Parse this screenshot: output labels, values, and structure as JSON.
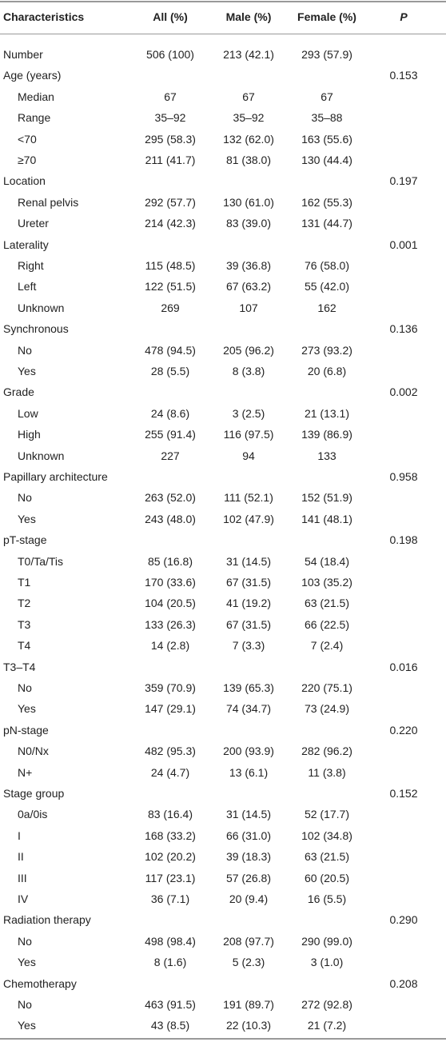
{
  "table": {
    "header": [
      "Characteristics",
      "All (%)",
      "Male (%)",
      "Female (%)",
      "P"
    ],
    "number_row": [
      "Number",
      "506 (100)",
      "213 (42.1)",
      "293 (57.9)"
    ],
    "groups": [
      {
        "label": "Age (years)",
        "p": "0.153",
        "rows": [
          [
            "Median",
            "67",
            "67",
            "67"
          ],
          [
            "Range",
            "35–92",
            "35–92",
            "35–88"
          ],
          [
            "<70",
            "295 (58.3)",
            "132 (62.0)",
            "163 (55.6)"
          ],
          [
            "≥70",
            "211 (41.7)",
            "81 (38.0)",
            "130 (44.4)"
          ]
        ]
      },
      {
        "label": "Location",
        "p": "0.197",
        "rows": [
          [
            "Renal pelvis",
            "292 (57.7)",
            "130 (61.0)",
            "162 (55.3)"
          ],
          [
            "Ureter",
            "214 (42.3)",
            "83 (39.0)",
            "131 (44.7)"
          ]
        ]
      },
      {
        "label": "Laterality",
        "p": "0.001",
        "rows": [
          [
            "Right",
            "115 (48.5)",
            "39 (36.8)",
            "76 (58.0)"
          ],
          [
            "Left",
            "122 (51.5)",
            "67 (63.2)",
            "55 (42.0)"
          ],
          [
            "Unknown",
            "269",
            "107",
            "162"
          ]
        ]
      },
      {
        "label": "Synchronous",
        "p": "0.136",
        "rows": [
          [
            "No",
            "478 (94.5)",
            "205 (96.2)",
            "273 (93.2)"
          ],
          [
            "Yes",
            "28 (5.5)",
            "8 (3.8)",
            "20 (6.8)"
          ]
        ]
      },
      {
        "label": "Grade",
        "p": "0.002",
        "rows": [
          [
            "Low",
            "24 (8.6)",
            "3 (2.5)",
            "21 (13.1)"
          ],
          [
            "High",
            "255 (91.4)",
            "116 (97.5)",
            "139 (86.9)"
          ],
          [
            "Unknown",
            "227",
            "94",
            "133"
          ]
        ]
      },
      {
        "label": "Papillary architecture",
        "p": "0.958",
        "rows": [
          [
            "No",
            "263 (52.0)",
            "111 (52.1)",
            "152 (51.9)"
          ],
          [
            "Yes",
            "243 (48.0)",
            "102 (47.9)",
            "141 (48.1)"
          ]
        ]
      },
      {
        "label": "pT-stage",
        "p": "0.198",
        "rows": [
          [
            "T0/Ta/Tis",
            "85 (16.8)",
            "31 (14.5)",
            "54 (18.4)"
          ],
          [
            "T1",
            "170 (33.6)",
            "67 (31.5)",
            "103 (35.2)"
          ],
          [
            "T2",
            "104 (20.5)",
            "41 (19.2)",
            "63 (21.5)"
          ],
          [
            "T3",
            "133 (26.3)",
            "67 (31.5)",
            "66 (22.5)"
          ],
          [
            "T4",
            "14 (2.8)",
            "7 (3.3)",
            "7 (2.4)"
          ]
        ]
      },
      {
        "label": "T3–T4",
        "p": "0.016",
        "rows": [
          [
            "No",
            "359 (70.9)",
            "139 (65.3)",
            "220 (75.1)"
          ],
          [
            "Yes",
            "147 (29.1)",
            "74 (34.7)",
            "73 (24.9)"
          ]
        ]
      },
      {
        "label": "pN-stage",
        "p": "0.220",
        "rows": [
          [
            "N0/Nx",
            "482 (95.3)",
            "200 (93.9)",
            "282 (96.2)"
          ],
          [
            "N+",
            "24 (4.7)",
            "13 (6.1)",
            "11 (3.8)"
          ]
        ]
      },
      {
        "label": "Stage group",
        "p": "0.152",
        "rows": [
          [
            "0a/0is",
            "83 (16.4)",
            "31 (14.5)",
            "52 (17.7)"
          ],
          [
            "I",
            "168 (33.2)",
            "66 (31.0)",
            "102 (34.8)"
          ],
          [
            "II",
            "102 (20.2)",
            "39 (18.3)",
            "63 (21.5)"
          ],
          [
            "III",
            "117 (23.1)",
            "57 (26.8)",
            "60 (20.5)"
          ],
          [
            "IV",
            "36 (7.1)",
            "20 (9.4)",
            "16 (5.5)"
          ]
        ]
      },
      {
        "label": "Radiation therapy",
        "p": "0.290",
        "rows": [
          [
            "No",
            "498 (98.4)",
            "208 (97.7)",
            "290 (99.0)"
          ],
          [
            "Yes",
            "8 (1.6)",
            "5 (2.3)",
            "3 (1.0)"
          ]
        ]
      },
      {
        "label": "Chemotherapy",
        "p": "0.208",
        "rows": [
          [
            "No",
            "463 (91.5)",
            "191 (89.7)",
            "272 (92.8)"
          ],
          [
            "Yes",
            "43 (8.5)",
            "22 (10.3)",
            "21 (7.2)"
          ]
        ]
      }
    ]
  }
}
